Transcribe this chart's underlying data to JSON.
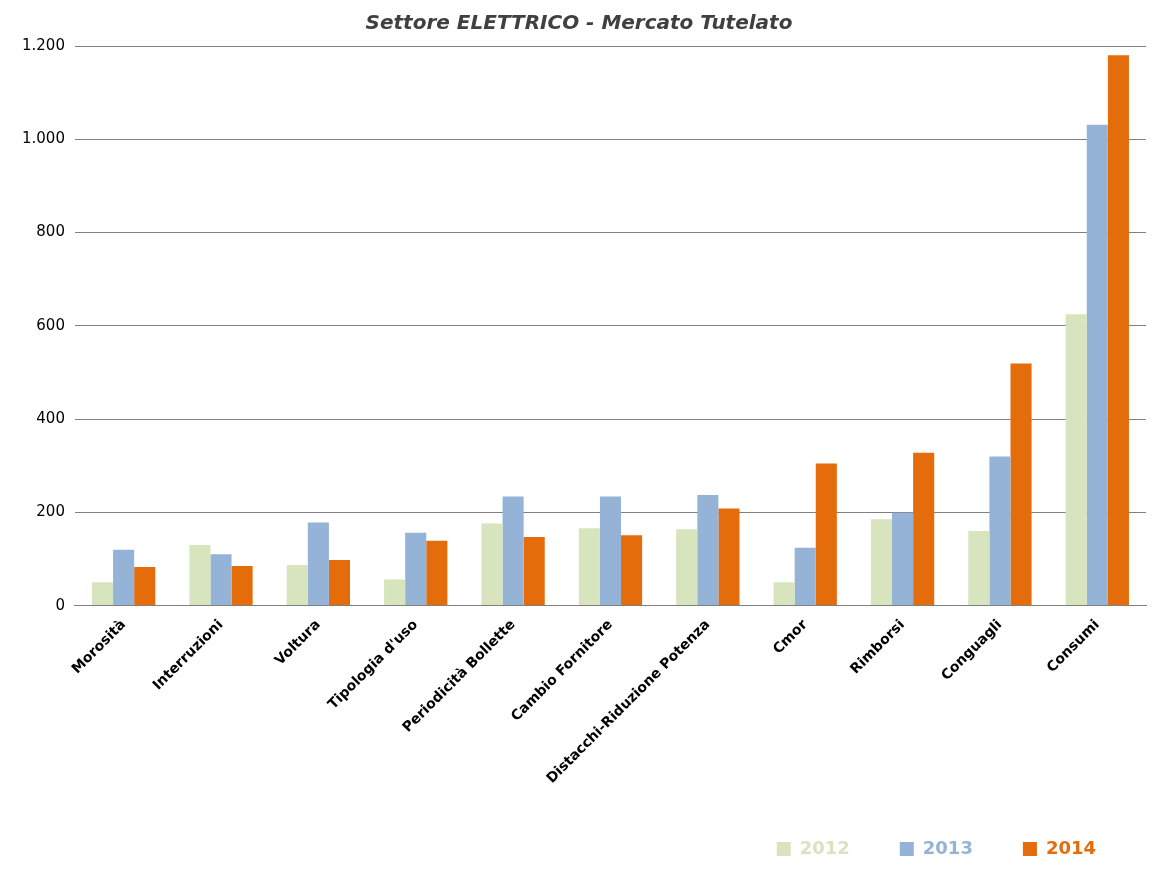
{
  "chart_data": {
    "type": "bar",
    "title": "Settore ELETTRICO - Mercato Tutelato",
    "categories": [
      "Morosità",
      "Interruzioni",
      "Voltura",
      "Tipologia d'uso",
      "Periodicità Bollette",
      "Cambio Fornitore",
      "Distacchi-Riduzione Potenza",
      "Cmor",
      "Rimborsi",
      "Conguagli",
      "Consumi"
    ],
    "series": [
      {
        "name": "2012",
        "color": "#d7e4bd",
        "values": [
          50,
          130,
          87,
          56,
          176,
          166,
          164,
          50,
          185,
          160,
          625
        ]
      },
      {
        "name": "2013",
        "color": "#95b3d7",
        "values": [
          120,
          110,
          178,
          156,
          234,
          234,
          237,
          124,
          199,
          320,
          1031
        ]
      },
      {
        "name": "2014",
        "color": "#e46c0a",
        "values": [
          83,
          85,
          98,
          139,
          147,
          151,
          208,
          305,
          328,
          519,
          1180
        ]
      }
    ],
    "ylim": [
      0,
      1200
    ],
    "yticks": [
      0,
      200,
      400,
      600,
      800,
      {
        "value": 1000,
        "label": "1.000"
      },
      {
        "value": 1200,
        "label": "1.200"
      }
    ],
    "grid": "y",
    "legend": "bottom right"
  }
}
